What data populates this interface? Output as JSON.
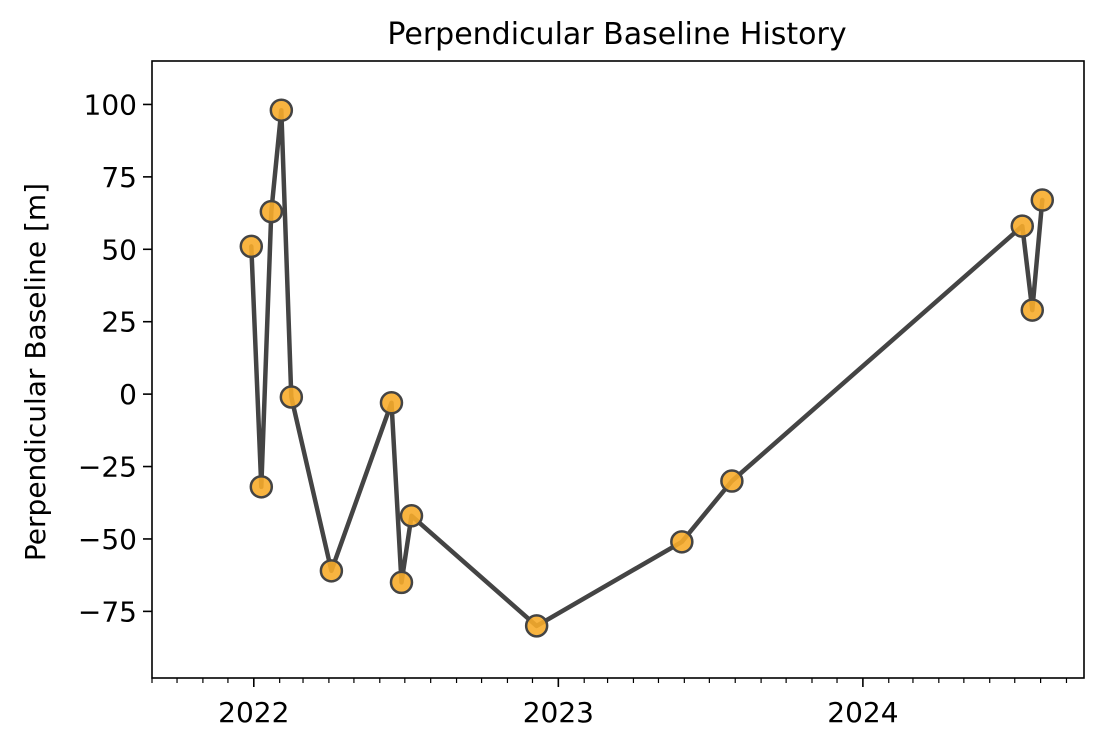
{
  "chart_data": {
    "type": "line",
    "title": "Perpendicular Baseline History",
    "xlabel": "",
    "ylabel": "Perpendicular Baseline [m]",
    "x_axis_type": "date",
    "xlim": [
      "2021-09-01",
      "2024-09-22"
    ],
    "ylim": [
      -98,
      115
    ],
    "yticks": [
      100,
      75,
      50,
      25,
      0,
      -25,
      -50,
      -75
    ],
    "ytick_labels": [
      "100",
      "75",
      "50",
      "25",
      "0",
      "−25",
      "−50",
      "−75"
    ],
    "xticks": [
      "2022-01-01",
      "2023-01-01",
      "2024-01-01"
    ],
    "xtick_labels": [
      "2022",
      "2023",
      "2024"
    ],
    "minor_ticks": "monthly",
    "grid": false,
    "line_color": "#444444",
    "marker_fill": "#f7ac2b",
    "marker_edge": "#444444",
    "series": [
      {
        "points": [
          {
            "date": "2021-12-29",
            "value": 51
          },
          {
            "date": "2022-01-10",
            "value": -32
          },
          {
            "date": "2022-01-22",
            "value": 63
          },
          {
            "date": "2022-02-03",
            "value": 98
          },
          {
            "date": "2022-02-15",
            "value": -1
          },
          {
            "date": "2022-04-04",
            "value": -61
          },
          {
            "date": "2022-06-15",
            "value": -3
          },
          {
            "date": "2022-06-27",
            "value": -65
          },
          {
            "date": "2022-07-09",
            "value": -42
          },
          {
            "date": "2022-12-06",
            "value": -80
          },
          {
            "date": "2023-05-29",
            "value": -51
          },
          {
            "date": "2023-07-28",
            "value": -30
          },
          {
            "date": "2024-07-10",
            "value": 58
          },
          {
            "date": "2024-07-22",
            "value": 29
          },
          {
            "date": "2024-08-03",
            "value": 67
          }
        ]
      }
    ]
  }
}
